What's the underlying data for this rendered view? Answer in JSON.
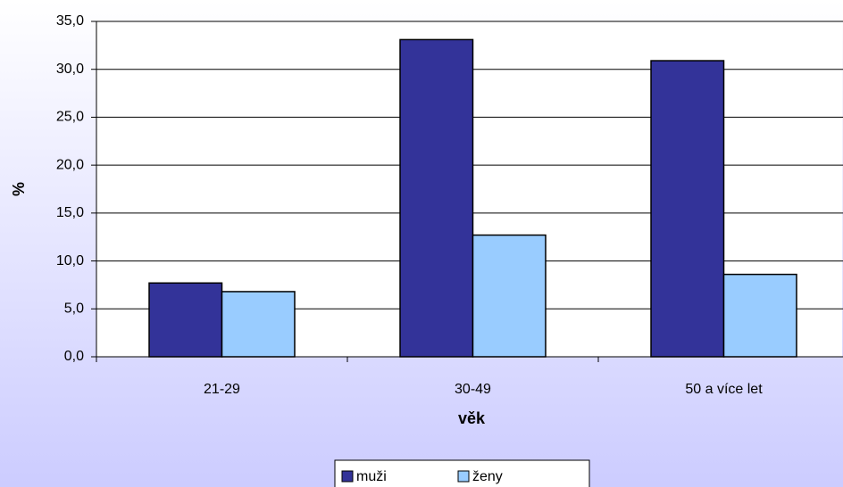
{
  "chart_data": {
    "type": "bar",
    "xlabel": "věk",
    "ylabel": "%",
    "categories": [
      "21-29",
      "30-49",
      "50 a více let"
    ],
    "series": [
      {
        "name": "muži",
        "color": "#333399",
        "values": [
          7.7,
          33.1,
          30.9
        ]
      },
      {
        "name": "ženy",
        "color": "#99ccff",
        "values": [
          6.8,
          12.7,
          8.6
        ]
      }
    ],
    "ylim": [
      0,
      35
    ],
    "yticks": [
      {
        "value": 0,
        "label": "0,0"
      },
      {
        "value": 5,
        "label": "5,0"
      },
      {
        "value": 10,
        "label": "10,0"
      },
      {
        "value": 15,
        "label": "15,0"
      },
      {
        "value": 20,
        "label": "20,0"
      },
      {
        "value": 25,
        "label": "25,0"
      },
      {
        "value": 30,
        "label": "30,0"
      },
      {
        "value": 35,
        "label": "35,0"
      }
    ],
    "grid": true,
    "legend": "bottom"
  }
}
